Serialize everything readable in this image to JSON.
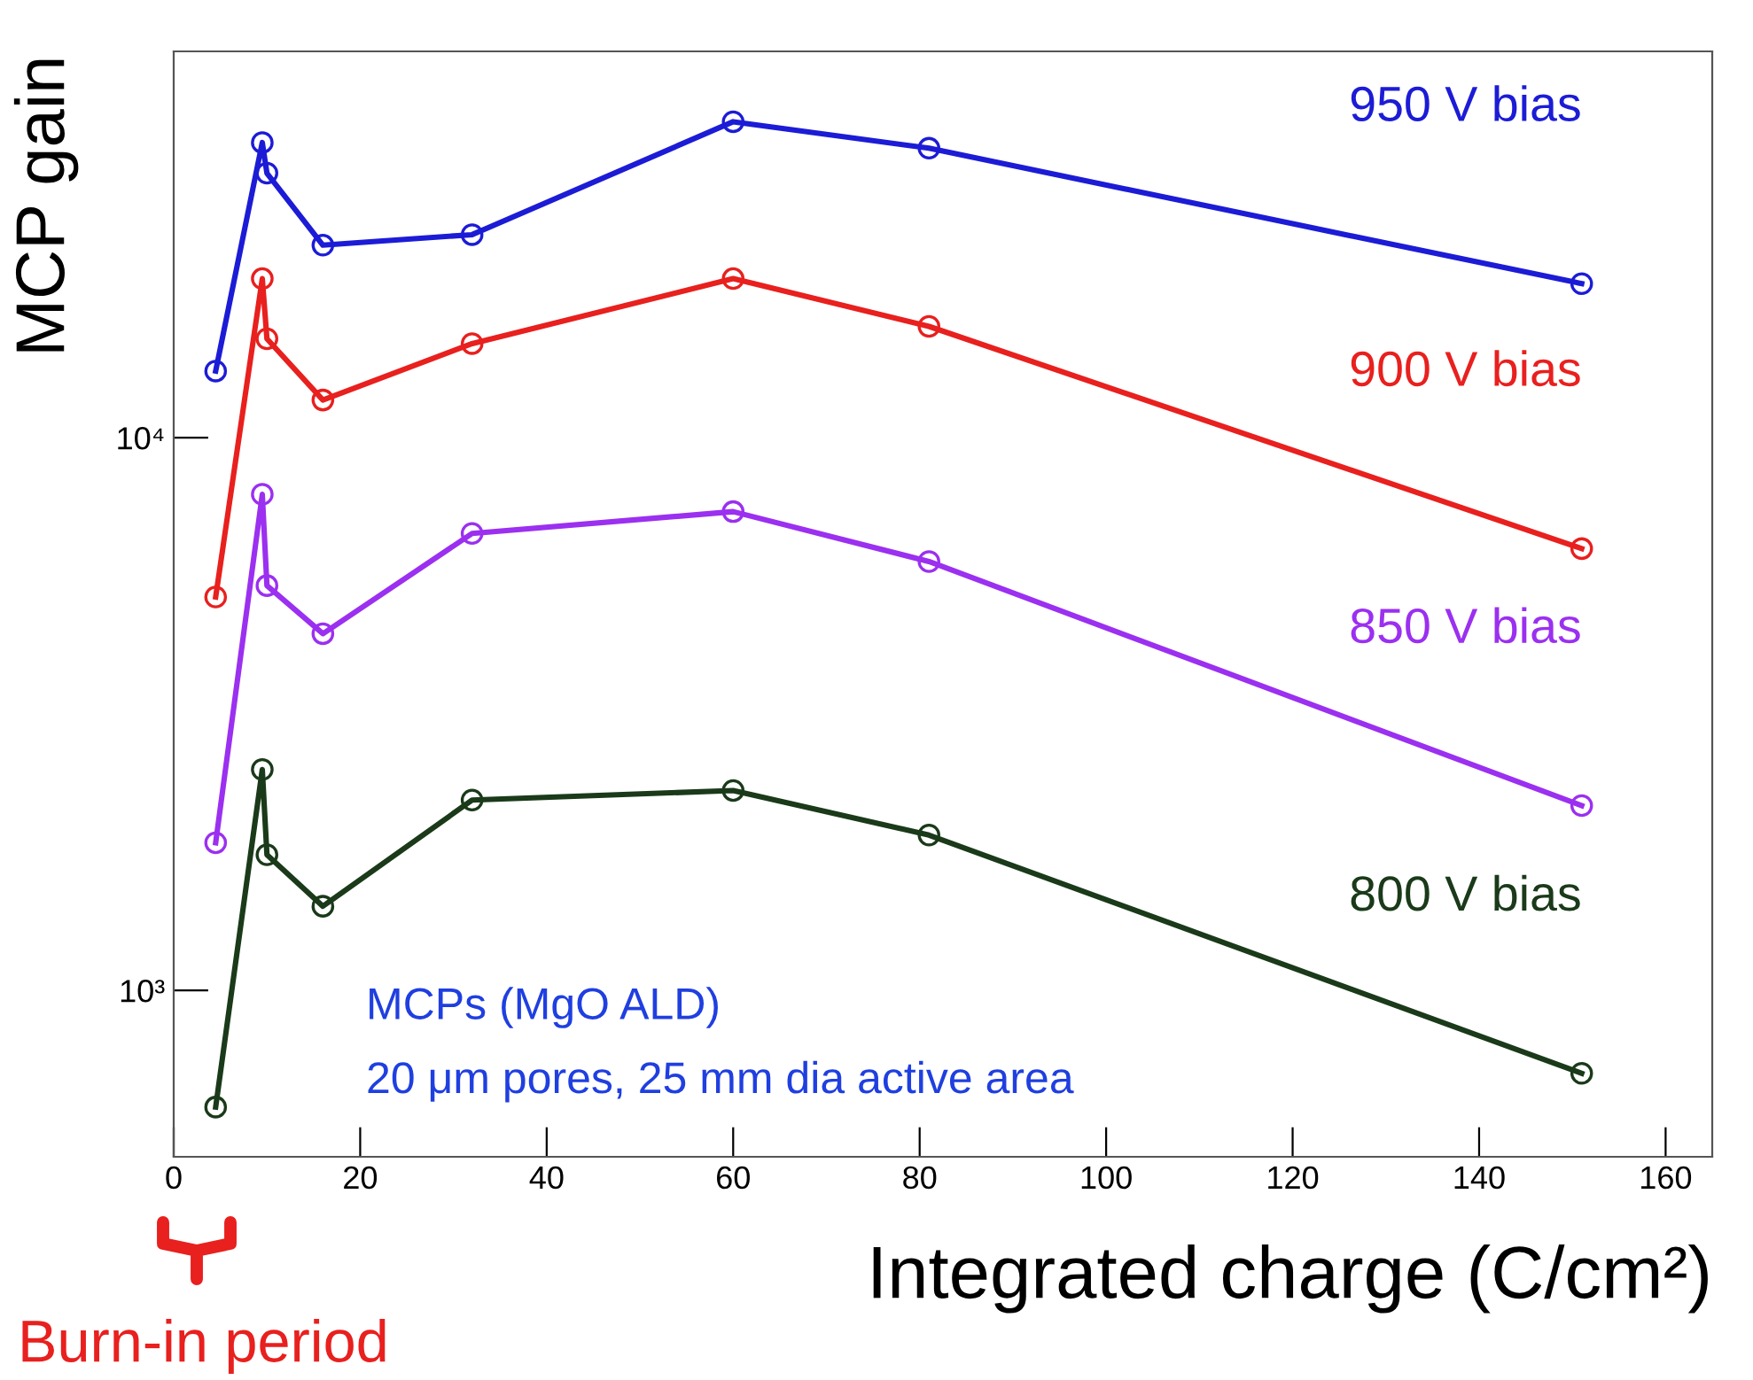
{
  "chart_data": {
    "type": "line",
    "xlabel": "Integrated charge (C/cm²)",
    "ylabel": "MCP gain",
    "x": [
      4.5,
      9.5,
      10,
      16,
      32,
      60,
      81,
      151
    ],
    "series": [
      {
        "name": "950 V bias",
        "color": "#1c1cd6",
        "values": [
          13200,
          34200,
          30100,
          22300,
          23300,
          37300,
          33400,
          19000
        ]
      },
      {
        "name": "900 V bias",
        "color": "#e8201e",
        "values": [
          5150,
          19400,
          15100,
          11700,
          14800,
          19400,
          15900,
          6300
        ]
      },
      {
        "name": "850 V bias",
        "color": "#9b30f0",
        "values": [
          1850,
          7900,
          5400,
          4420,
          6710,
          7350,
          5970,
          2160
        ]
      },
      {
        "name": "800 V bias",
        "color": "#1a3a1a",
        "values": [
          615,
          2510,
          1760,
          1420,
          2210,
          2300,
          1910,
          708
        ]
      }
    ],
    "log": "y",
    "xlim": [
      0,
      165
    ],
    "ylim": [
      500,
      50000
    ],
    "xticks": [
      0,
      20,
      40,
      60,
      80,
      100,
      120,
      140,
      160
    ],
    "yticks": [
      {
        "value": 1000,
        "label": "10³"
      },
      {
        "value": 10000,
        "label": "10⁴"
      }
    ],
    "marker": "circle",
    "line_style": "solid",
    "grid": false,
    "annotations": [
      "MCPs (MgO ALD)",
      "20 μm pores, 25 mm dia active area",
      "Burn-in period"
    ]
  }
}
